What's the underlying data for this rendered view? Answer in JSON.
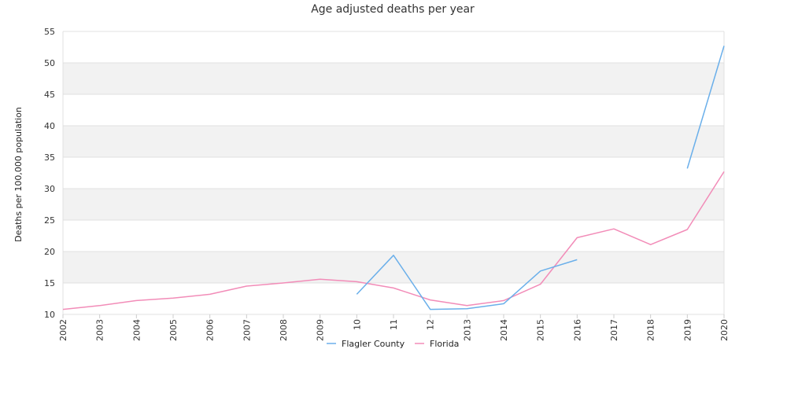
{
  "chart_data": {
    "type": "line",
    "title": "Age adjusted deaths per year",
    "xlabel": "",
    "ylabel": "Deaths per 100,000 population",
    "x": [
      "2002",
      "2003",
      "2004",
      "2005",
      "2006",
      "2007",
      "2008",
      "2009",
      "2010",
      "2011",
      "2012",
      "2013",
      "2014",
      "2015",
      "2016",
      "2017",
      "2018",
      "2019",
      "2020"
    ],
    "x_tick_labels": [
      "2002",
      "2003",
      "2004",
      "2005",
      "2006",
      "2007",
      "2008",
      "2009",
      "10",
      "11",
      "12",
      "2013",
      "2014",
      "2015",
      "2016",
      "2017",
      "2018",
      "2019",
      "2020"
    ],
    "y_ticks": [
      10,
      15,
      20,
      25,
      30,
      35,
      40,
      45,
      50,
      55
    ],
    "ylim": [
      10,
      55
    ],
    "grid": true,
    "banded_background": true,
    "legend_position": "bottom-center",
    "series": [
      {
        "name": "Flagler County",
        "color": "#6aafea",
        "values": [
          null,
          null,
          null,
          null,
          null,
          null,
          null,
          null,
          13.2,
          19.4,
          10.8,
          10.9,
          11.7,
          16.9,
          18.7,
          null,
          null,
          33.2,
          52.7
        ]
      },
      {
        "name": "Florida",
        "color": "#f28cb8",
        "values": [
          10.8,
          11.4,
          12.2,
          12.6,
          13.2,
          14.5,
          15.0,
          15.6,
          15.2,
          14.2,
          12.3,
          11.4,
          12.2,
          14.8,
          22.2,
          23.6,
          21.1,
          23.5,
          32.7
        ]
      }
    ]
  },
  "colors": {
    "band": "#f2f2f2",
    "gridline": "#e0e0e0",
    "axis": "#cccccc"
  }
}
